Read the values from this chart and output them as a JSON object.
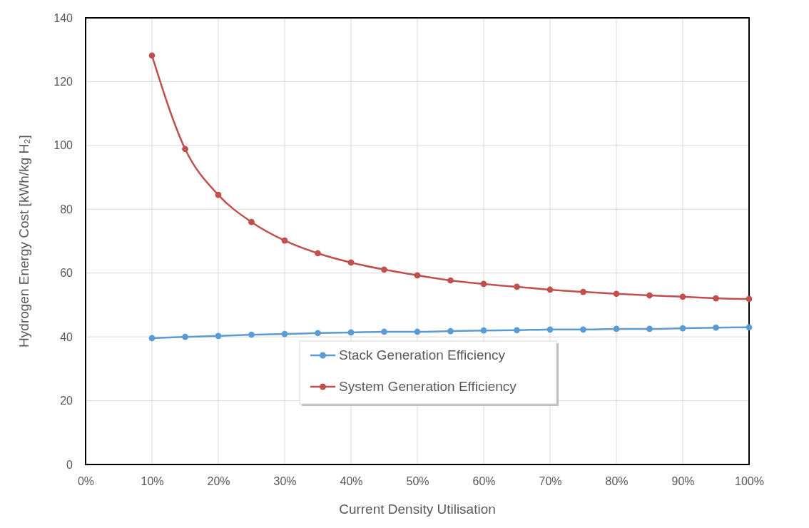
{
  "chart_data": {
    "type": "line",
    "xlabel": "Current Density Utilisation",
    "ylabel": "Hydrogen Energy Cost [kWh/kg H₂]",
    "x": [
      10,
      15,
      20,
      25,
      30,
      35,
      40,
      45,
      50,
      55,
      60,
      65,
      70,
      75,
      80,
      85,
      90,
      95,
      100
    ],
    "xlim": [
      0,
      100
    ],
    "xticks": [
      {
        "value": 0,
        "label": "0%"
      },
      {
        "value": 10,
        "label": "10%"
      },
      {
        "value": 20,
        "label": "20%"
      },
      {
        "value": 30,
        "label": "30%"
      },
      {
        "value": 40,
        "label": "40%"
      },
      {
        "value": 50,
        "label": "50%"
      },
      {
        "value": 60,
        "label": "60%"
      },
      {
        "value": 70,
        "label": "70%"
      },
      {
        "value": 80,
        "label": "80%"
      },
      {
        "value": 90,
        "label": "90%"
      },
      {
        "value": 100,
        "label": "100%"
      }
    ],
    "ylim": [
      0,
      140
    ],
    "yticks": [
      0,
      20,
      40,
      60,
      80,
      100,
      120,
      140
    ],
    "grid": true,
    "legend": "bottom",
    "marker": "circle",
    "line_style": "solid",
    "series": [
      {
        "name": "Stack Generation Efficiency",
        "color": "#5b9bd5",
        "values": [
          39.6,
          40.0,
          40.3,
          40.7,
          40.9,
          41.2,
          41.4,
          41.6,
          41.6,
          41.8,
          42.0,
          42.1,
          42.3,
          42.3,
          42.5,
          42.5,
          42.7,
          42.9,
          43.0
        ]
      },
      {
        "name": "System Generation Efficiency",
        "color": "#c0504d",
        "values": [
          128.2,
          98.9,
          84.5,
          76.0,
          70.2,
          66.2,
          63.3,
          61.1,
          59.3,
          57.7,
          56.6,
          55.7,
          54.8,
          54.1,
          53.5,
          53.0,
          52.6,
          52.1,
          51.9
        ]
      }
    ]
  }
}
